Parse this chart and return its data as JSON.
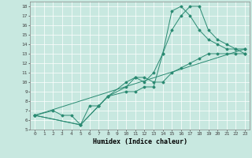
{
  "xlabel": "Humidex (Indice chaleur)",
  "xlim": [
    -0.5,
    23.5
  ],
  "ylim": [
    5,
    18.5
  ],
  "xticks": [
    0,
    1,
    2,
    3,
    4,
    5,
    6,
    7,
    8,
    9,
    10,
    11,
    12,
    13,
    14,
    15,
    16,
    17,
    18,
    19,
    20,
    21,
    22,
    23
  ],
  "yticks": [
    5,
    6,
    7,
    8,
    9,
    10,
    11,
    12,
    13,
    14,
    15,
    16,
    17,
    18
  ],
  "line_color": "#2a8a72",
  "bg_color": "#c8e8e0",
  "grid_color": "#ffffff",
  "lines": [
    {
      "x": [
        0,
        2,
        3,
        4,
        5,
        6,
        7,
        8,
        10,
        11,
        12,
        13,
        14,
        15,
        16,
        17,
        18,
        19,
        20,
        21,
        22,
        23
      ],
      "y": [
        6.5,
        7,
        6.5,
        6.5,
        5.5,
        7.5,
        7.5,
        8.5,
        10,
        10.5,
        10,
        11,
        13,
        15.5,
        17,
        18,
        18,
        15.5,
        14.5,
        14,
        13.5,
        13.5
      ]
    },
    {
      "x": [
        0,
        23
      ],
      "y": [
        6.5,
        13.5
      ]
    },
    {
      "x": [
        0,
        5,
        7,
        8,
        10,
        11,
        12,
        13,
        14,
        15,
        16,
        17,
        18,
        19,
        20,
        21,
        22,
        23
      ],
      "y": [
        6.5,
        5.5,
        7.5,
        8.5,
        9.5,
        10.5,
        10.5,
        10,
        10,
        11,
        11.5,
        12,
        12.5,
        13,
        13,
        13,
        13,
        13
      ]
    },
    {
      "x": [
        0,
        5,
        7,
        8,
        10,
        11,
        12,
        13,
        14,
        15,
        16,
        17,
        18,
        19,
        20,
        21,
        22,
        23
      ],
      "y": [
        6.5,
        5.5,
        7.5,
        8.5,
        9,
        9,
        9.5,
        9.5,
        13,
        17.5,
        18,
        17,
        15.5,
        14.5,
        14,
        13.5,
        13.5,
        13
      ]
    }
  ]
}
